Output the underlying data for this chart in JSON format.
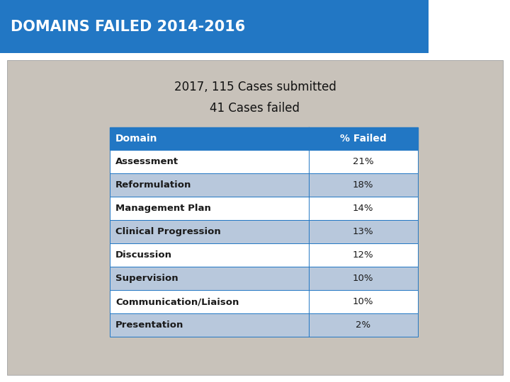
{
  "title": "DOMAINS FAILED 2014-2016",
  "title_bg_color": "#2277C4",
  "title_text_color": "#FFFFFF",
  "subtitle_line1": "2017, 115 Cases submitted",
  "subtitle_line2": "41 Cases failed",
  "bg_outer": "#FFFFFF",
  "bg_inner": "#C8C2BA",
  "table_header": [
    "Domain",
    "% Failed"
  ],
  "table_header_bg": "#2277C4",
  "table_header_text_color": "#FFFFFF",
  "domains": [
    "Assessment",
    "Reformulation",
    "Management Plan",
    "Clinical Progression",
    "Discussion",
    "Supervision",
    "Communication/Liaison",
    "Presentation"
  ],
  "percentages": [
    "21%",
    "18%",
    "14%",
    "13%",
    "12%",
    "10%",
    "10%",
    "2%"
  ],
  "row_color_light": "#FFFFFF",
  "row_color_dark": "#B8C8DC",
  "row_text_color": "#1A1A1A",
  "table_border_color": "#2277C4"
}
